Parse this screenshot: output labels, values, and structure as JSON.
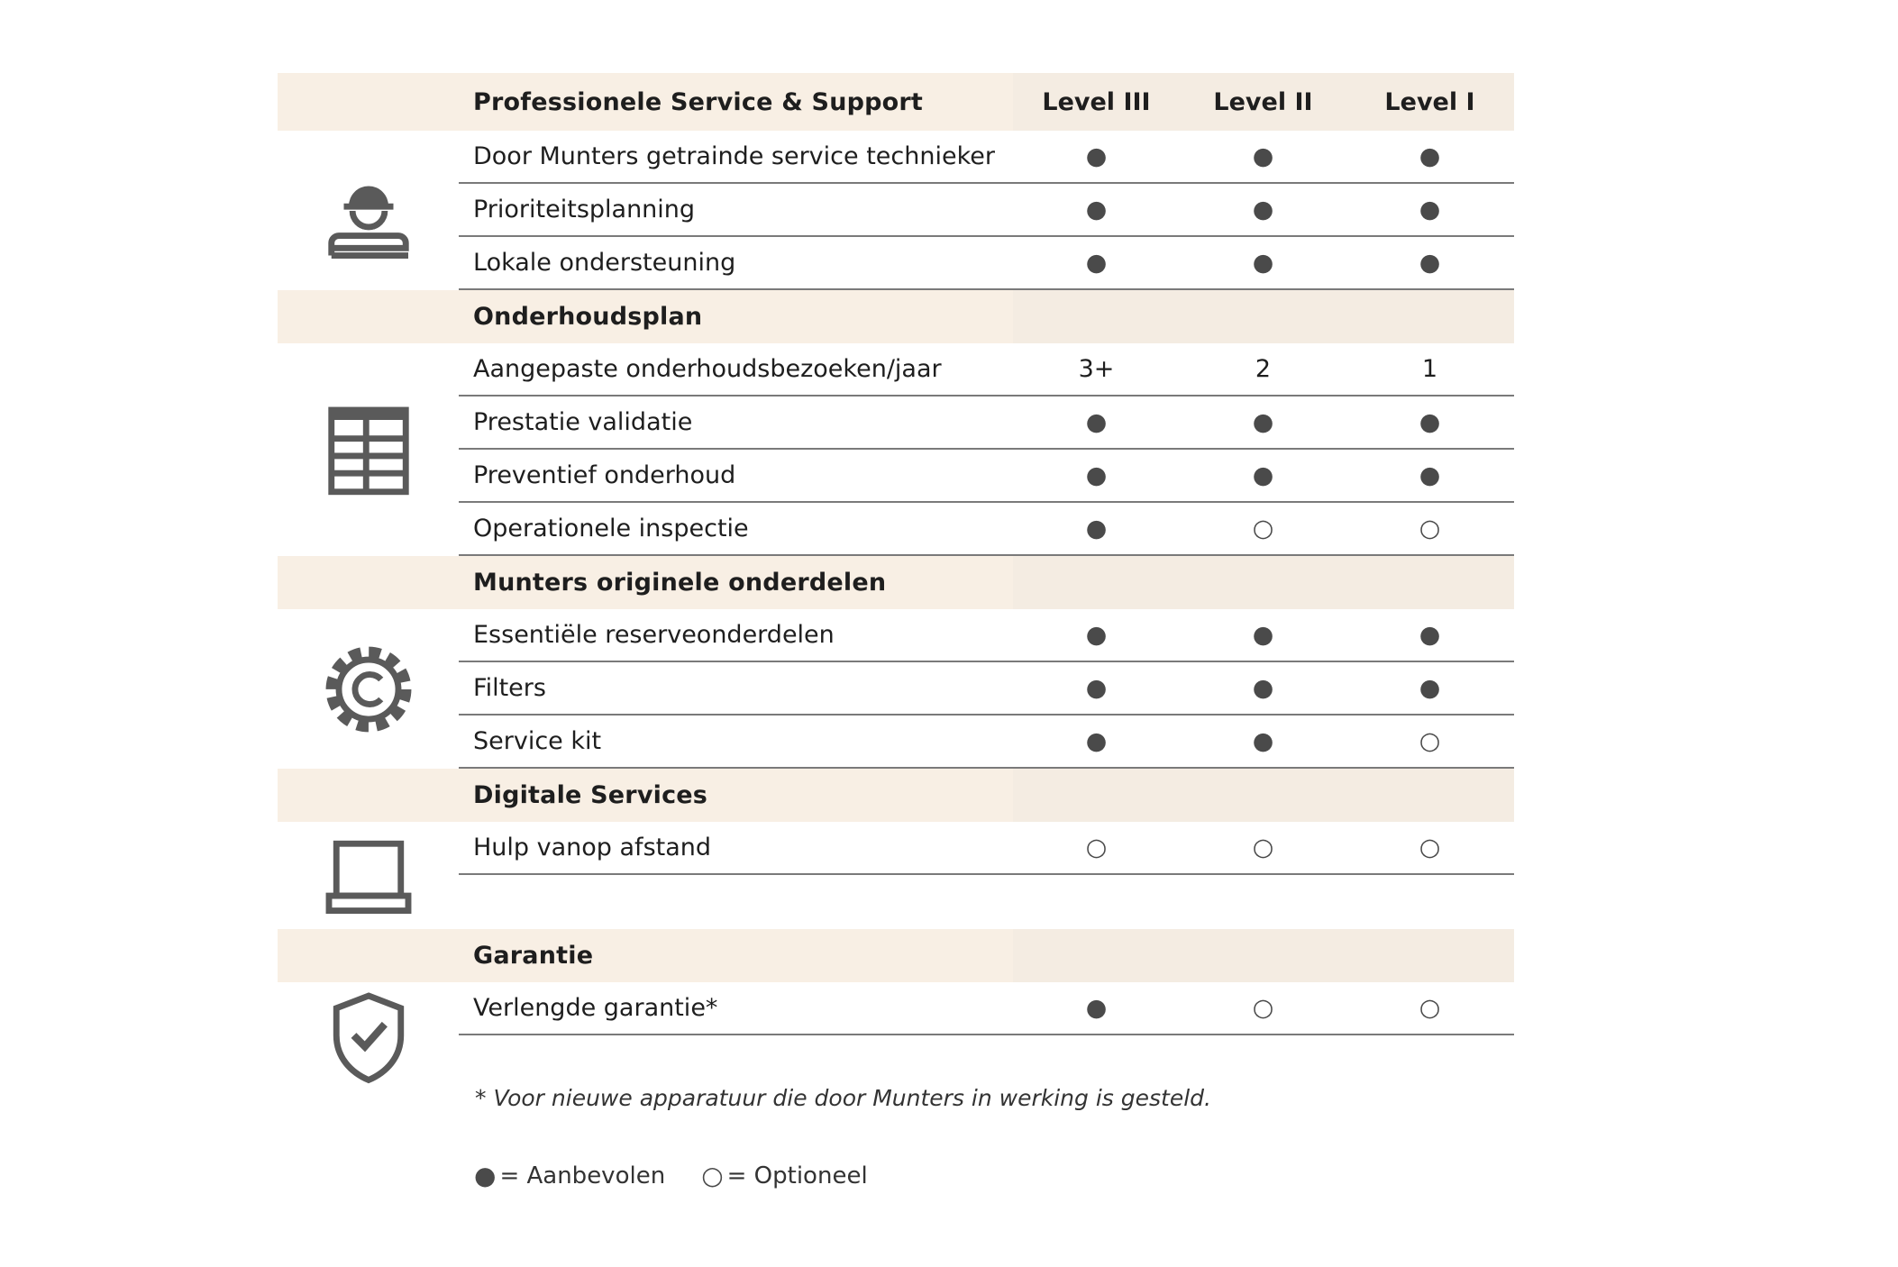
{
  "table": {
    "columns": [
      "Level III",
      "Level II",
      "Level I"
    ],
    "sections": [
      {
        "title": "Professionele Service & Support",
        "rows": [
          {
            "label": "Door Munters getrainde service technieker",
            "cells": [
              "●",
              "●",
              "●"
            ]
          },
          {
            "label": "Prioriteitsplanning",
            "cells": [
              "●",
              "●",
              "●"
            ]
          },
          {
            "label": "Lokale ondersteuning",
            "cells": [
              "●",
              "●",
              "●"
            ]
          }
        ]
      },
      {
        "title": "Onderhoudsplan",
        "rows": [
          {
            "label": "Aangepaste onderhoudsbezoeken/jaar",
            "cells": [
              "3+",
              "2",
              "1"
            ]
          },
          {
            "label": "Prestatie validatie",
            "cells": [
              "●",
              "●",
              "●"
            ]
          },
          {
            "label": "Preventief onderhoud",
            "cells": [
              "●",
              "●",
              "●"
            ]
          },
          {
            "label": "Operationele inspectie",
            "cells": [
              "●",
              "○",
              "○"
            ]
          }
        ]
      },
      {
        "title": "Munters originele onderdelen",
        "rows": [
          {
            "label": "Essentiële reserveonderdelen",
            "cells": [
              "●",
              "●",
              "●"
            ]
          },
          {
            "label": "Filters",
            "cells": [
              "●",
              "●",
              "●"
            ]
          },
          {
            "label": "Service kit",
            "cells": [
              "●",
              "●",
              "○"
            ]
          }
        ]
      },
      {
        "title": "Digitale Services",
        "rows": [
          {
            "label": "Hulp vanop afstand",
            "cells": [
              "○",
              "○",
              "○"
            ]
          }
        ]
      },
      {
        "title": "Garantie",
        "rows": [
          {
            "label": "Verlengde garantie*",
            "cells": [
              "●",
              "○",
              "○"
            ]
          }
        ]
      }
    ]
  },
  "footnote": "* Voor nieuwe apparatuur die door Munters in werking is gesteld.",
  "legend": [
    {
      "symbol": "●",
      "label": "= Aanbevolen"
    },
    {
      "symbol": "○",
      "label": "= Optioneel"
    }
  ]
}
